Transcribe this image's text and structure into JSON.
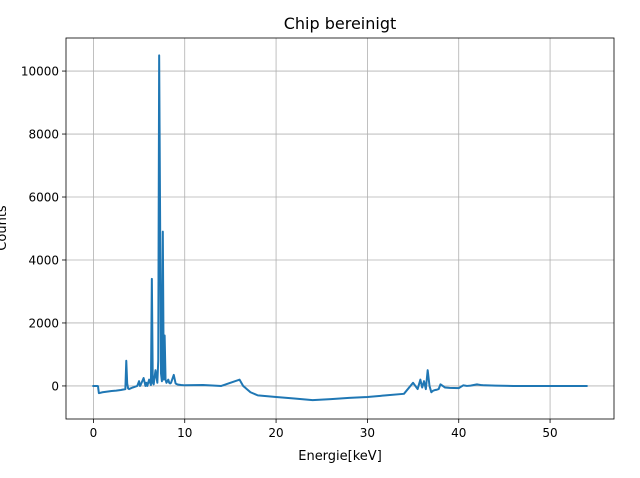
{
  "chart_data": {
    "type": "line",
    "title": "Chip bereinigt",
    "xlabel": "Energie[keV]",
    "ylabel": "Counts",
    "xlim": [
      -3,
      57
    ],
    "ylim": [
      -1050,
      11050
    ],
    "xticks": [
      0,
      10,
      20,
      30,
      40,
      50
    ],
    "yticks": [
      0,
      2000,
      4000,
      6000,
      8000,
      10000
    ],
    "xtick_labels": [
      "0",
      "10",
      "20",
      "30",
      "40",
      "50"
    ],
    "ytick_labels": [
      "0",
      "2000",
      "4000",
      "6000",
      "8000",
      "10000"
    ],
    "grid": true,
    "legend": "none",
    "color": "#1f77b4",
    "series": [
      {
        "x": [
          0,
          0.4,
          0.5,
          0.6,
          1.0,
          1.5,
          2.0,
          2.5,
          3.0,
          3.5,
          3.6,
          3.7,
          3.8,
          3.9,
          4.3,
          4.8,
          5.0,
          5.1,
          5.2,
          5.5,
          5.7,
          5.8,
          5.9,
          6.1,
          6.3,
          6.4,
          6.5,
          6.6,
          6.8,
          7.0,
          7.1,
          7.2,
          7.4,
          7.5,
          7.6,
          7.7,
          7.8,
          7.9,
          8.0,
          8.1,
          8.2,
          8.3,
          8.4,
          8.5,
          8.8,
          9.0,
          9.1,
          9.3,
          9.6,
          10,
          12,
          14,
          16,
          16.4,
          16.6,
          16.8,
          17.2,
          18,
          20,
          22,
          24,
          26,
          28,
          30,
          32,
          34,
          35,
          35.5,
          35.8,
          36.0,
          36.2,
          36.4,
          36.6,
          36.8,
          37.0,
          37.2,
          37.4,
          37.6,
          37.8,
          38.0,
          38.5,
          39,
          40,
          40.5,
          40.7,
          40.9,
          41.3,
          42,
          42.2,
          42.4,
          42.8,
          44,
          46,
          48,
          50,
          52,
          54
        ],
        "y": [
          0,
          0,
          -10,
          -230,
          -200,
          -180,
          -160,
          -150,
          -130,
          -100,
          800,
          80,
          -80,
          -100,
          -50,
          0,
          150,
          0,
          50,
          250,
          0,
          100,
          0,
          200,
          30,
          3400,
          100,
          50,
          500,
          100,
          800,
          10500,
          400,
          150,
          4900,
          200,
          1600,
          200,
          100,
          150,
          200,
          100,
          80,
          100,
          350,
          80,
          60,
          40,
          30,
          20,
          30,
          0,
          200,
          0,
          -50,
          -100,
          -200,
          -300,
          -350,
          -400,
          -450,
          -420,
          -380,
          -350,
          -300,
          -250,
          100,
          -100,
          200,
          -50,
          150,
          -100,
          500,
          0,
          -200,
          -150,
          -130,
          -120,
          -100,
          50,
          -50,
          -60,
          -70,
          20,
          10,
          0,
          10,
          50,
          40,
          30,
          20,
          10,
          0,
          0,
          0,
          0,
          0
        ]
      }
    ]
  }
}
